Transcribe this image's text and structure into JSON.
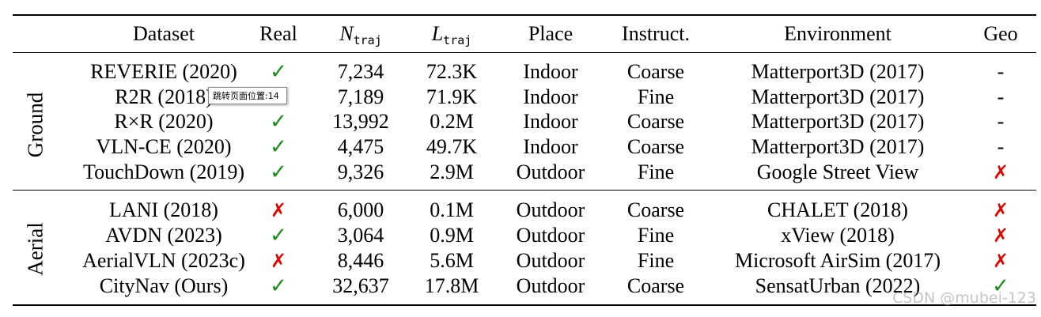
{
  "headers": {
    "dataset": "Dataset",
    "real": "Real",
    "ntraj_symbol": "N",
    "ntraj_sub": "traj",
    "ltraj_symbol": "L",
    "ltraj_sub": "traj",
    "place": "Place",
    "instruct": "Instruct.",
    "environment": "Environment",
    "geo": "Geo"
  },
  "groups": {
    "ground": "Ground",
    "aerial": "Aerial"
  },
  "rows": [
    {
      "dataset": "REVERIE (2020)",
      "real": "✓",
      "ntraj": "7,234",
      "ltraj": "72.3K",
      "place": "Indoor",
      "instruct": "Coarse",
      "environment": "Matterport3D (2017)",
      "geo": "-"
    },
    {
      "dataset": "R2R (2018)",
      "real": "✓",
      "ntraj": "7,189",
      "ltraj": "71.9K",
      "place": "Indoor",
      "instruct": "Fine",
      "environment": "Matterport3D (2017)",
      "geo": "-"
    },
    {
      "dataset": "R×R (2020)",
      "real": "✓",
      "ntraj": "13,992",
      "ltraj": "0.2M",
      "place": "Indoor",
      "instruct": "Coarse",
      "environment": "Matterport3D (2017)",
      "geo": "-"
    },
    {
      "dataset": "VLN-CE (2020)",
      "real": "✓",
      "ntraj": "4,475",
      "ltraj": "49.7K",
      "place": "Indoor",
      "instruct": "Coarse",
      "environment": "Matterport3D (2017)",
      "geo": "-"
    },
    {
      "dataset": "TouchDown (2019)",
      "real": "✓",
      "ntraj": "9,326",
      "ltraj": "2.9M",
      "place": "Outdoor",
      "instruct": "Fine",
      "environment": "Google Street View",
      "geo": "✗"
    },
    {
      "dataset": "LANI (2018)",
      "real": "✗",
      "ntraj": "6,000",
      "ltraj": "0.1M",
      "place": "Outdoor",
      "instruct": "Coarse",
      "environment": "CHALET (2018)",
      "geo": "✗"
    },
    {
      "dataset": "AVDN (2023)",
      "real": "✓",
      "ntraj": "3,064",
      "ltraj": "0.9M",
      "place": "Outdoor",
      "instruct": "Fine",
      "environment": "xView (2018)",
      "geo": "✗"
    },
    {
      "dataset": "AerialVLN (2023c)",
      "real": "✗",
      "ntraj": "8,446",
      "ltraj": "5.6M",
      "place": "Outdoor",
      "instruct": "Fine",
      "environment": "Microsoft AirSim (2017)",
      "geo": "✗"
    },
    {
      "dataset": "CityNav (Ours)",
      "real": "✓",
      "ntraj": "32,637",
      "ltraj": "17.8M",
      "place": "Outdoor",
      "instruct": "Coarse",
      "environment": "SensatUrban (2022)",
      "geo": "✓"
    }
  ],
  "tooltip": "跳转页面位置:14",
  "watermark": "CSDN @mubei-123",
  "colors": {
    "check": "#1a8a1a",
    "cross": "#e00000"
  }
}
